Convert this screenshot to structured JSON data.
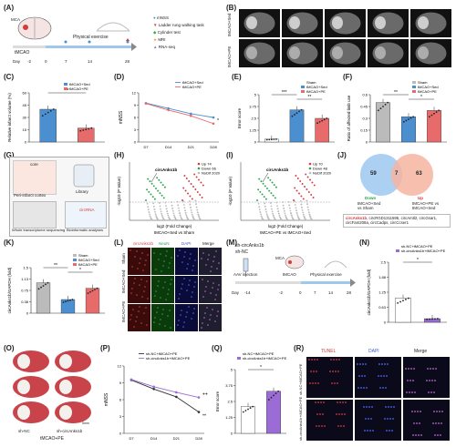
{
  "colors": {
    "sed": "#4b8fd1",
    "pe": "#e86b6b",
    "sham": "#9a9a9a",
    "green": "#2aa84a",
    "red": "#d63b3b",
    "purple": "#9b6bd6",
    "venn_blue": "#9ec8ee",
    "venn_red": "#f4b4a0"
  },
  "panel_labels": [
    "(A)",
    "(B)",
    "(C)",
    "(D)",
    "(E)",
    "(F)",
    "(G)",
    "(H)",
    "(I)",
    "(J)",
    "(K)",
    "(L)",
    "(M)",
    "(N)",
    "(O)",
    "(P)",
    "(Q)",
    "(R)"
  ],
  "A": {
    "mca": "MCA",
    "tmcao": "tMCAO",
    "timeline_title": "Physical exercise",
    "day_label": "Day",
    "ticks": [
      "-2",
      "0",
      "7",
      "14",
      "28"
    ],
    "legend": [
      "mNSS",
      "Ladder rung walking task",
      "Cylinder test",
      "MRI",
      "RNA-seq"
    ]
  },
  "B": {
    "rows": [
      "tMCAO+Sed",
      "tMCAO+PE"
    ]
  },
  "C": {
    "ylabel": "Relative infarct volume (%)",
    "legend": [
      "tMCAO+Sed",
      "tMCAO+PE"
    ],
    "sig": "**",
    "chart_data": {
      "type": "bar",
      "categories": [
        "tMCAO+Sed",
        "tMCAO+PE"
      ],
      "values": [
        40,
        17
      ],
      "ylim": [
        0,
        60
      ],
      "ylabel": "Relative infarct volume (%)"
    }
  },
  "D": {
    "ylabel": "mNSS",
    "xticks": [
      "D7",
      "D14",
      "D21",
      "D28"
    ],
    "legend": [
      "tMCAO+Sed",
      "tMCAO+PE"
    ],
    "sig": "*",
    "chart_data": {
      "type": "line",
      "x": [
        "D7",
        "D14",
        "D21",
        "D28"
      ],
      "series": [
        {
          "name": "tMCAO+Sed",
          "values": [
            9.5,
            8.2,
            6.9,
            6.0
          ]
        },
        {
          "name": "tMCAO+PE",
          "values": [
            9.4,
            7.8,
            6.4,
            4.5
          ]
        }
      ],
      "ylim": [
        0,
        12
      ],
      "ylabel": "mNSS"
    }
  },
  "E": {
    "ylabel": "Error score",
    "legend": [
      "Sham",
      "tMCAO+Sed",
      "tMCAO+PE"
    ],
    "sig": [
      "***",
      "**"
    ],
    "chart_data": {
      "type": "bar",
      "categories": [
        "Sham",
        "tMCAO+Sed",
        "tMCAO+PE"
      ],
      "values": [
        0.3,
        3.4,
        2.5
      ],
      "ylim": [
        0,
        5
      ],
      "ylabel": "Error score"
    }
  },
  "F": {
    "ylabel": "Ratio of affected limb use",
    "legend": [
      "Sham",
      "tMCAO+Sed",
      "tMCAO+PE"
    ],
    "sig": [
      "**",
      "*"
    ],
    "chart_data": {
      "type": "bar",
      "categories": [
        "Sham",
        "tMCAO+Sed",
        "tMCAO+PE"
      ],
      "values": [
        0.5,
        0.32,
        0.4
      ],
      "ylim": [
        0,
        0.6
      ],
      "ylabel": "Ratio of affected limb use"
    }
  },
  "G": {
    "core": "core",
    "peri": "Peri-infarct cortex",
    "library": "Library",
    "seq": "Whole transcriptome sequencing",
    "bio": "Bioinformatic analyses",
    "rna": "circRNA"
  },
  "H": {
    "label": "circAnks1b",
    "legend": [
      "Up 74",
      "Down 66",
      "NoDif 2020"
    ],
    "ylabel": "-log10 (P Value)",
    "xlabel": "log2 (Fold Change)",
    "sub": "tMCAO+Sed vs Sham"
  },
  "I": {
    "label": "circAnks1b",
    "legend": [
      "Up 70",
      "Down 48",
      "NoDif 2020"
    ],
    "ylabel": "-log10 (P Value)",
    "xlabel": "log2 (Fold Change)",
    "sub": "tMCAO+PE vs tMCAO+Sed"
  },
  "J": {
    "left": "59",
    "mid": "7",
    "right": "63",
    "down": "Down",
    "down_sub": "tMCAO+Sed\nvs Sham",
    "up": "Up",
    "up_sub": "tMCAO+PE vs\ntMCAO+Sed",
    "list_red": "circAnks1b",
    "list": ", circRGD1311595, circAmtl2, circGsar1, circFam208a, circCadps, circCcser1"
  },
  "K": {
    "ylabel": "circAnks1b/GAPDH (fold)",
    "legend": [
      "Sham",
      "tMCAO+Sed",
      "tMCAO+PE"
    ],
    "sig": [
      "**",
      "*"
    ],
    "chart_data": {
      "type": "bar",
      "categories": [
        "Sham",
        "tMCAO+Sed",
        "tMCAO+PE"
      ],
      "values": [
        1.0,
        0.45,
        0.82
      ],
      "ylim": [
        0,
        1.5
      ],
      "ylabel": "circAnks1b/GAPDH (fold)"
    }
  },
  "L": {
    "cols": [
      "circAnks1b",
      "NeuN",
      "DAPI",
      "Merge"
    ],
    "rows": [
      "Sham",
      "tMCAO+Sed",
      "tMCAO+PE"
    ]
  },
  "M": {
    "sh1": "sh-circAnks1b",
    "sh2": "sh-NC",
    "aav": "AAV injection",
    "tmcao": "tMCAO",
    "mca": "MCA",
    "pe": "Physical exercise",
    "ticks": [
      "-14",
      "-2",
      "0",
      "7",
      "14",
      "28"
    ],
    "day": "Day"
  },
  "N": {
    "ylabel": "circAnks1b/GAPDH (fold)",
    "legend": [
      "sh-NC+tMCAO+PE",
      "sh-circAnks1b+tMCAO+PE"
    ],
    "sig": "*",
    "chart_data": {
      "type": "bar",
      "categories": [
        "sh-NC+tMCAO+PE",
        "sh-circAnks1b+tMCAO+PE"
      ],
      "values": [
        1.0,
        0.15
      ],
      "ylim": [
        0,
        2.5
      ],
      "ylabel": "circAnks1b/GAPDH (fold)"
    }
  },
  "O": {
    "sh1": "sh-NC",
    "sh2": "sh-circAnks1b",
    "group": "tMCAO+PE",
    "scale": "5mm"
  },
  "P": {
    "ylabel": "mNSS",
    "xticks": [
      "D7",
      "D14",
      "D21",
      "D28"
    ],
    "legend": [
      "sh-NC+tMCAO+PE",
      "sh-circAnks1b+tMCAO+PE"
    ],
    "sig": [
      "++",
      "**"
    ],
    "chart_data": {
      "type": "line",
      "x": [
        "D7",
        "D14",
        "D21",
        "D28"
      ],
      "series": [
        {
          "name": "sh-NC+tMCAO+PE",
          "values": [
            9.5,
            7.9,
            6.5,
            3.8
          ]
        },
        {
          "name": "sh-circAnks1b+tMCAO+PE",
          "values": [
            9.6,
            8.3,
            7.3,
            6.4
          ]
        }
      ],
      "ylim": [
        0,
        12
      ],
      "ylabel": "mNSS"
    }
  },
  "Q": {
    "ylabel": "Error score",
    "legend": [
      "sh-NC+tMCAO+PE",
      "sh-circAnks1b+tMCAO+PE"
    ],
    "sig": "*",
    "chart_data": {
      "type": "bar",
      "categories": [
        "sh-NC+tMCAO+PE",
        "sh-circAnks1b+tMCAO+PE"
      ],
      "values": [
        2.1,
        3.3
      ],
      "ylim": [
        0,
        5
      ],
      "ylabel": "Error score"
    }
  },
  "R": {
    "cols": [
      "TUNEL",
      "DAPI",
      "Merge"
    ],
    "rows": [
      "sh-NC+tMCAO+PE",
      "sh-circAnks1b+tMCAO+PE"
    ]
  }
}
